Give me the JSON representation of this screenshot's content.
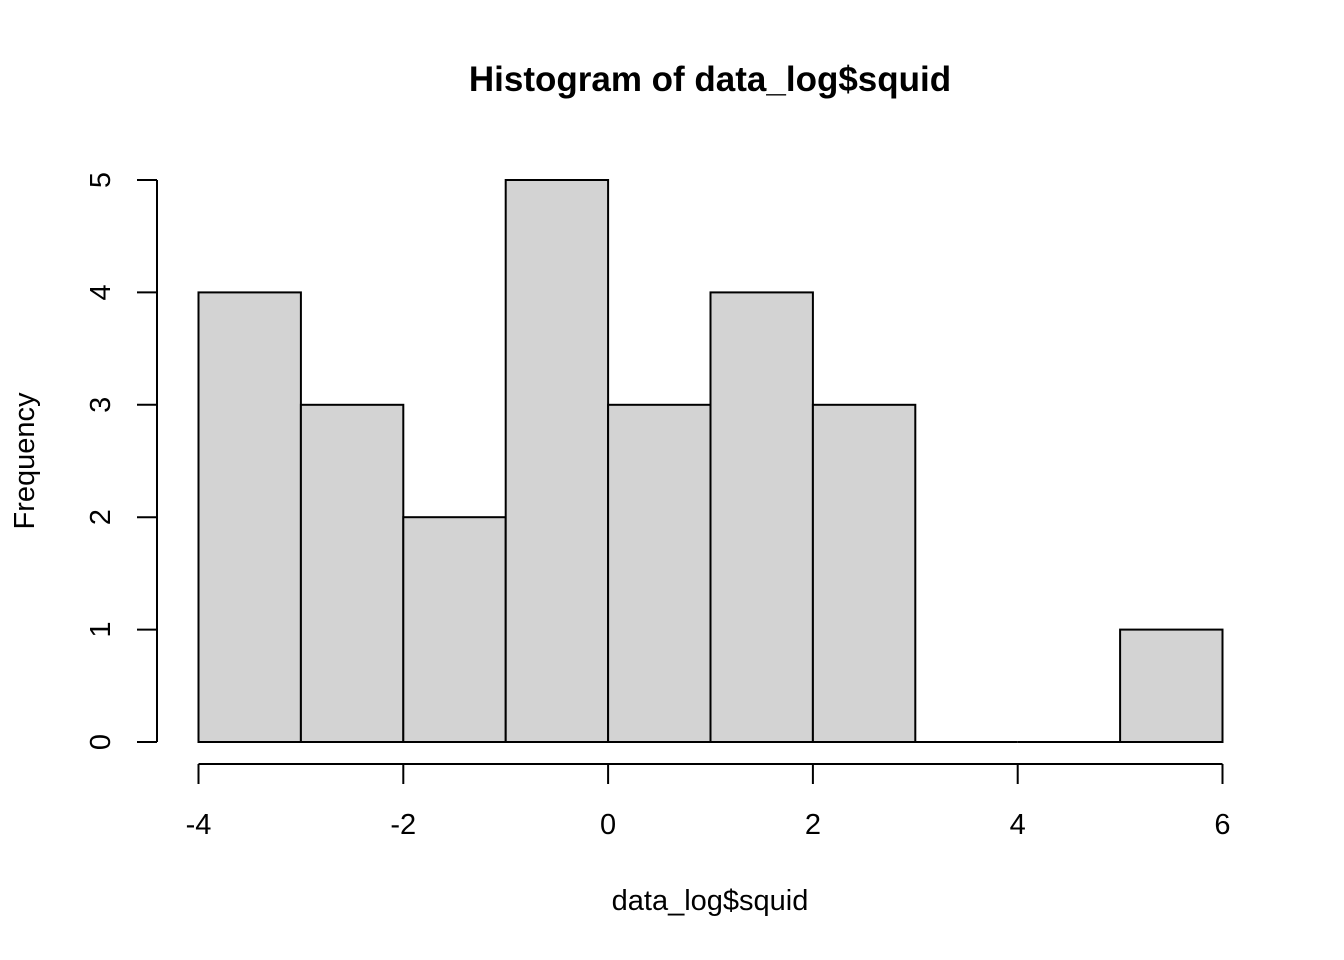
{
  "chart_data": {
    "type": "bar",
    "subtype": "histogram",
    "title": "Histogram of data_log$squid",
    "xlabel": "data_log$squid",
    "ylabel": "Frequency",
    "bins": [
      {
        "start": -4,
        "end": -3,
        "count": 4
      },
      {
        "start": -3,
        "end": -2,
        "count": 3
      },
      {
        "start": -2,
        "end": -1,
        "count": 2
      },
      {
        "start": -1,
        "end": 0,
        "count": 5
      },
      {
        "start": 0,
        "end": 1,
        "count": 3
      },
      {
        "start": 1,
        "end": 2,
        "count": 4
      },
      {
        "start": 2,
        "end": 3,
        "count": 3
      },
      {
        "start": 3,
        "end": 4,
        "count": 0
      },
      {
        "start": 4,
        "end": 5,
        "count": 0
      },
      {
        "start": 5,
        "end": 6,
        "count": 1
      }
    ],
    "xlim": [
      -4,
      6
    ],
    "ylim": [
      0,
      5
    ],
    "x_ticks": [
      -4,
      -2,
      0,
      2,
      4,
      6
    ],
    "y_ticks": [
      0,
      1,
      2,
      3,
      4,
      5
    ],
    "bar_color": "#d3d3d3",
    "border_color": "#000000",
    "grid": false,
    "legend": "none"
  }
}
